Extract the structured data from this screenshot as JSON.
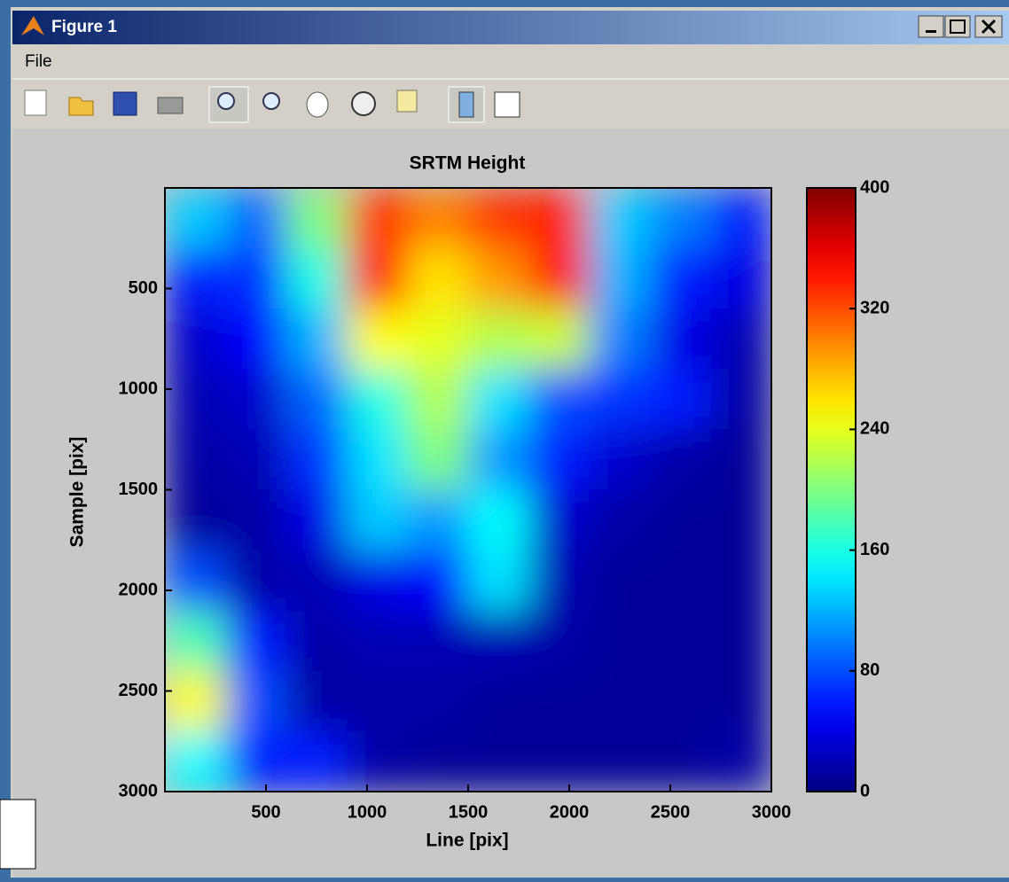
{
  "window": {
    "title": "Figure 1",
    "menu": [
      "File"
    ]
  },
  "chart_data": {
    "type": "heatmap",
    "title": "SRTM Height",
    "x_label": "Line [pix]",
    "y_label": "Sample [pix]",
    "x": [
      150,
      450,
      750,
      1050,
      1350,
      1650,
      1950,
      2250,
      2550,
      2850
    ],
    "y": [
      150,
      450,
      750,
      1050,
      1350,
      1650,
      1950,
      2250,
      2550,
      2850
    ],
    "values": [
      [
        130,
        90,
        200,
        330,
        300,
        330,
        340,
        130,
        100,
        60
      ],
      [
        60,
        70,
        160,
        350,
        260,
        290,
        350,
        120,
        60,
        40
      ],
      [
        30,
        50,
        120,
        250,
        240,
        220,
        230,
        100,
        40,
        20
      ],
      [
        20,
        30,
        90,
        160,
        220,
        140,
        80,
        70,
        60,
        15
      ],
      [
        15,
        20,
        70,
        140,
        200,
        110,
        60,
        30,
        15,
        10
      ],
      [
        10,
        15,
        40,
        130,
        110,
        150,
        30,
        15,
        10,
        10
      ],
      [
        80,
        15,
        20,
        40,
        50,
        140,
        20,
        10,
        10,
        10
      ],
      [
        180,
        60,
        15,
        20,
        20,
        20,
        15,
        10,
        10,
        10
      ],
      [
        250,
        80,
        15,
        15,
        15,
        10,
        10,
        10,
        10,
        10
      ],
      [
        150,
        60,
        60,
        15,
        10,
        10,
        10,
        10,
        10,
        15
      ]
    ],
    "xlim": [
      0,
      3000
    ],
    "ylim": [
      0,
      3000
    ],
    "y_reversed": true,
    "xticks": [
      500,
      1000,
      1500,
      2000,
      2500,
      3000
    ],
    "yticks": [
      500,
      1000,
      1500,
      2000,
      2500,
      3000
    ],
    "colormap": "jet",
    "colorbar": {
      "clim": [
        0,
        400
      ],
      "ticks": [
        0,
        80,
        160,
        240,
        320,
        400
      ]
    }
  }
}
